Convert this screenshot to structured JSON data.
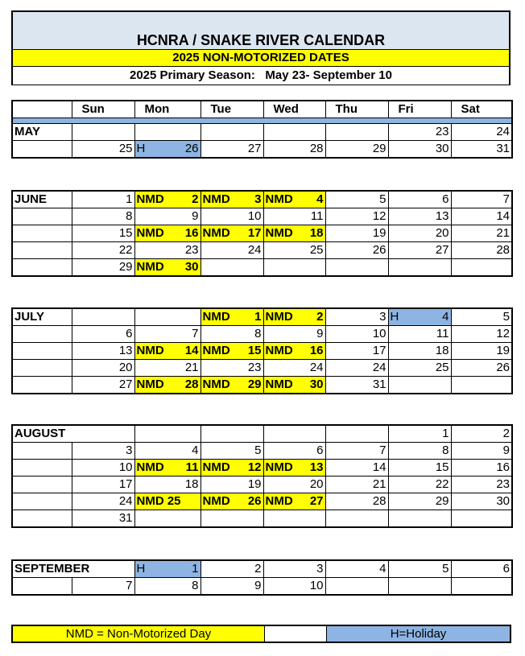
{
  "header": {
    "title": "HCNRA / SNAKE RIVER CALENDAR",
    "subtitle": "2025 NON-MOTORIZED DATES",
    "season": "2025 Primary Season:   May 23- September 10"
  },
  "colors": {
    "nmd": "#ffff00",
    "holiday": "#8db4e2",
    "title_bg": "#dce6f1"
  },
  "days": [
    "Sun",
    "Mon",
    "Tue",
    "Wed",
    "Thu",
    "Fri",
    "Sat"
  ],
  "months": [
    {
      "name": "MAY",
      "span": false,
      "rows": [
        [
          {},
          {},
          {},
          {},
          {},
          {
            "d": "23"
          },
          {
            "d": "24"
          }
        ],
        [
          {
            "d": "25"
          },
          {
            "p": "H",
            "d": "26",
            "t": "h"
          },
          {
            "d": "27"
          },
          {
            "d": "28"
          },
          {
            "d": "29"
          },
          {
            "d": "30"
          },
          {
            "d": "31"
          }
        ]
      ]
    },
    {
      "name": "JUNE",
      "span": false,
      "rows": [
        [
          {
            "d": "1"
          },
          {
            "p": "NMD",
            "d": "2",
            "t": "n"
          },
          {
            "p": "NMD",
            "d": "3",
            "t": "n"
          },
          {
            "p": "NMD",
            "d": "4",
            "t": "n"
          },
          {
            "d": "5"
          },
          {
            "d": "6"
          },
          {
            "d": "7"
          }
        ],
        [
          {
            "d": "8"
          },
          {
            "d": "9"
          },
          {
            "d": "10"
          },
          {
            "d": "11"
          },
          {
            "d": "12"
          },
          {
            "d": "13"
          },
          {
            "d": "14"
          }
        ],
        [
          {
            "d": "15"
          },
          {
            "p": "NMD",
            "d": "16",
            "t": "n"
          },
          {
            "p": "NMD",
            "d": "17",
            "t": "n"
          },
          {
            "p": "NMD",
            "d": "18",
            "t": "n"
          },
          {
            "d": "19"
          },
          {
            "d": "20"
          },
          {
            "d": "21"
          }
        ],
        [
          {
            "d": "22"
          },
          {
            "d": "23"
          },
          {
            "d": "24"
          },
          {
            "d": "25"
          },
          {
            "d": "26"
          },
          {
            "d": "27"
          },
          {
            "d": "28"
          }
        ],
        [
          {
            "d": "29"
          },
          {
            "p": "NMD",
            "d": "30",
            "t": "n"
          },
          {},
          {},
          {},
          {},
          {}
        ]
      ]
    },
    {
      "name": "JULY",
      "span": false,
      "rows": [
        [
          {},
          {},
          {
            "p": "NMD",
            "d": "1",
            "t": "n"
          },
          {
            "p": "NMD",
            "d": "2",
            "t": "n"
          },
          {
            "d": "3"
          },
          {
            "p": "H",
            "d": "4",
            "t": "h"
          },
          {
            "d": "5"
          }
        ],
        [
          {
            "d": "6"
          },
          {
            "d": "7"
          },
          {
            "d": "8"
          },
          {
            "d": "9"
          },
          {
            "d": "10"
          },
          {
            "d": "11"
          },
          {
            "d": "12"
          }
        ],
        [
          {
            "d": "13"
          },
          {
            "p": "NMD",
            "d": "14",
            "t": "n"
          },
          {
            "p": "NMD",
            "d": "15",
            "t": "n"
          },
          {
            "p": "NMD",
            "d": "16",
            "t": "n"
          },
          {
            "d": "17"
          },
          {
            "d": "18"
          },
          {
            "d": "19"
          }
        ],
        [
          {
            "d": "20"
          },
          {
            "d": "21"
          },
          {
            "d": "23"
          },
          {
            "d": "24"
          },
          {
            "d": "24"
          },
          {
            "d": "25"
          },
          {
            "d": "26"
          }
        ],
        [
          {
            "d": "27"
          },
          {
            "p": "NMD",
            "d": "28",
            "t": "n"
          },
          {
            "p": "NMD",
            "d": "29",
            "t": "n"
          },
          {
            "p": "NMD",
            "d": "30",
            "t": "n"
          },
          {
            "d": "31"
          },
          {},
          {}
        ]
      ]
    },
    {
      "name": "AUGUST",
      "span": true,
      "rows": [
        [
          {},
          {},
          {},
          {},
          {},
          {
            "d": "1"
          },
          {
            "d": "2"
          }
        ],
        [
          {
            "d": "3"
          },
          {
            "d": "4"
          },
          {
            "d": "5"
          },
          {
            "d": "6"
          },
          {
            "d": "7"
          },
          {
            "d": "8"
          },
          {
            "d": "9"
          }
        ],
        [
          {
            "d": "10"
          },
          {
            "p": "NMD",
            "d": "11",
            "t": "n"
          },
          {
            "p": "NMD",
            "d": "12",
            "t": "n"
          },
          {
            "p": "NMD",
            "d": "13",
            "t": "n"
          },
          {
            "d": "14"
          },
          {
            "d": "15"
          },
          {
            "d": "16"
          }
        ],
        [
          {
            "d": "17"
          },
          {
            "d": "18"
          },
          {
            "d": "19"
          },
          {
            "d": "20"
          },
          {
            "d": "21"
          },
          {
            "d": "22"
          },
          {
            "d": "23"
          }
        ],
        [
          {
            "d": "24"
          },
          {
            "p": "NMD 25",
            "d": "",
            "t": "n"
          },
          {
            "p": "NMD",
            "d": "26",
            "t": "n"
          },
          {
            "p": "NMD",
            "d": "27",
            "t": "n"
          },
          {
            "d": "28"
          },
          {
            "d": "29"
          },
          {
            "d": "30"
          }
        ],
        [
          {
            "d": "31"
          },
          {},
          {},
          {},
          {},
          {},
          {}
        ]
      ]
    },
    {
      "name": "SEPTEMBER",
      "span": true,
      "rows": [
        [
          {},
          {
            "p": "H",
            "d": "1",
            "t": "h"
          },
          {
            "d": "2"
          },
          {
            "d": "3"
          },
          {
            "d": "4"
          },
          {
            "d": "5"
          },
          {
            "d": "6"
          }
        ],
        [
          {
            "d": "7"
          },
          {
            "d": "8"
          },
          {
            "d": "9"
          },
          {
            "d": "10"
          },
          {},
          {},
          {}
        ]
      ]
    }
  ],
  "legend": {
    "nmd": "NMD = Non-Motorized Day",
    "holiday": "H=Holiday"
  }
}
